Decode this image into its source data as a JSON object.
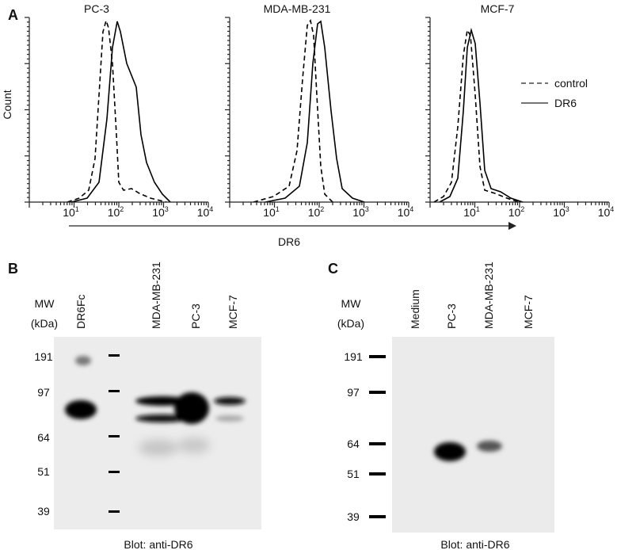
{
  "panel_a": {
    "label": "A",
    "y_axis_label": "Count",
    "x_axis_label": "DR6",
    "legend": [
      "control",
      "DR6"
    ],
    "plots": [
      {
        "title": "PC-3",
        "ticks": [
          {
            "base": "10",
            "exp": "1"
          },
          {
            "base": "10",
            "exp": "2"
          },
          {
            "base": "10",
            "exp": "3"
          },
          {
            "base": "10",
            "exp": "4"
          }
        ]
      },
      {
        "title": "MDA-MB-231",
        "ticks": [
          {
            "base": "10",
            "exp": "1"
          },
          {
            "base": "10",
            "exp": "2"
          },
          {
            "base": "10",
            "exp": "3"
          },
          {
            "base": "10",
            "exp": "4"
          }
        ]
      },
      {
        "title": "MCF-7",
        "ticks": [
          {
            "base": "10",
            "exp": "1"
          },
          {
            "base": "10",
            "exp": "2"
          },
          {
            "base": "10",
            "exp": "3"
          },
          {
            "base": "10",
            "exp": "4"
          }
        ]
      }
    ]
  },
  "panel_b": {
    "label": "B",
    "mw_label": "MW",
    "unit_label": "(kDa)",
    "lanes": [
      "DR6Fc",
      "MDA-MB-231",
      "PC-3",
      "MCF-7"
    ],
    "markers": [
      "191",
      "97",
      "64",
      "51",
      "39"
    ],
    "caption": "Blot: anti-DR6"
  },
  "panel_c": {
    "label": "C",
    "mw_label": "MW",
    "unit_label": "(kDa)",
    "lanes": [
      "Medium",
      "PC-3",
      "MDA-MB-231",
      "MCF-7"
    ],
    "markers": [
      "191",
      "97",
      "64",
      "51",
      "39"
    ],
    "caption": "Blot: anti-DR6"
  }
}
